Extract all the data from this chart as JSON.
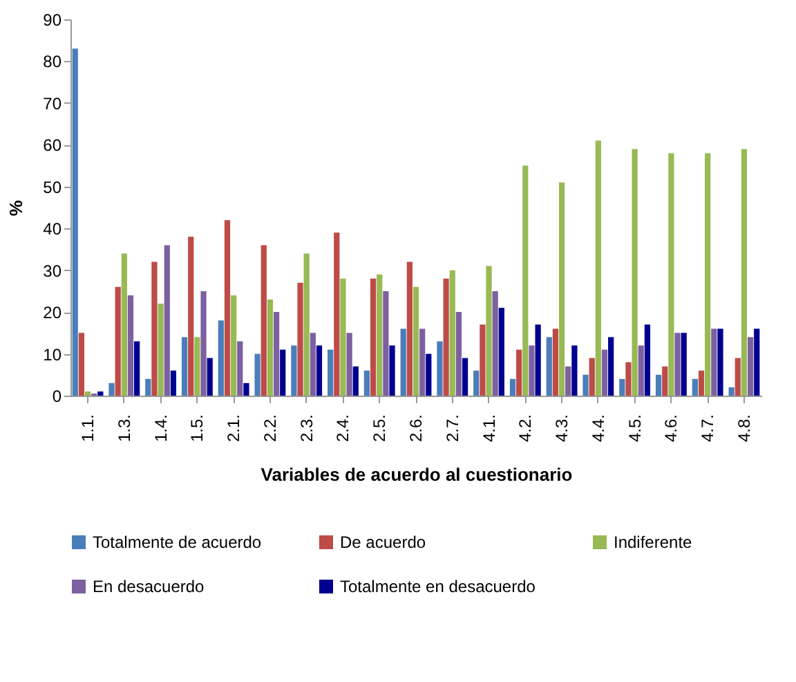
{
  "chart_data": {
    "type": "bar",
    "xlabel": "Variables de acuerdo al cuestionario",
    "ylabel": "%",
    "categories": [
      "1.1.",
      "1.3.",
      "1.4.",
      "1.5.",
      "2.1.",
      "2.2.",
      "2.3.",
      "2.4.",
      "2.5.",
      "2.6.",
      "2.7.",
      "4.1.",
      "4.2.",
      "4.3.",
      "4.4.",
      "4.5.",
      "4.6.",
      "4.7.",
      "4.8."
    ],
    "series": [
      {
        "name": "Totalmente de acuerdo",
        "color": "#4a7ebb",
        "values": [
          83,
          3,
          4,
          14,
          18,
          10,
          12,
          11,
          6,
          16,
          13,
          6,
          4,
          14,
          5,
          4,
          5,
          4,
          2
        ]
      },
      {
        "name": "De acuerdo",
        "color": "#be4b48",
        "values": [
          15,
          26,
          32,
          38,
          42,
          36,
          27,
          39,
          28,
          32,
          28,
          17,
          11,
          16,
          9,
          8,
          7,
          6,
          9
        ]
      },
      {
        "name": "Indiferente",
        "color": "#98b954",
        "values": [
          1,
          34,
          22,
          14,
          24,
          23,
          34,
          28,
          29,
          26,
          30,
          31,
          55,
          51,
          61,
          59,
          58,
          58,
          59
        ]
      },
      {
        "name": "En desacuerdo",
        "color": "#7d60a0",
        "values": [
          0.5,
          24,
          36,
          25,
          13,
          20,
          15,
          15,
          25,
          16,
          20,
          25,
          12,
          7,
          11,
          12,
          15,
          16,
          14
        ]
      },
      {
        "name": "Totalmente en desacuerdo",
        "color": "#000090",
        "values": [
          1,
          13,
          6,
          9,
          3,
          11,
          12,
          7,
          12,
          10,
          9,
          21,
          17,
          12,
          14,
          17,
          15,
          16,
          16
        ]
      }
    ],
    "ylim": [
      0,
      90
    ],
    "yticks": [
      0,
      10,
      20,
      30,
      40,
      50,
      60,
      70,
      80,
      90
    ],
    "grid": false,
    "legend": "bottom"
  }
}
